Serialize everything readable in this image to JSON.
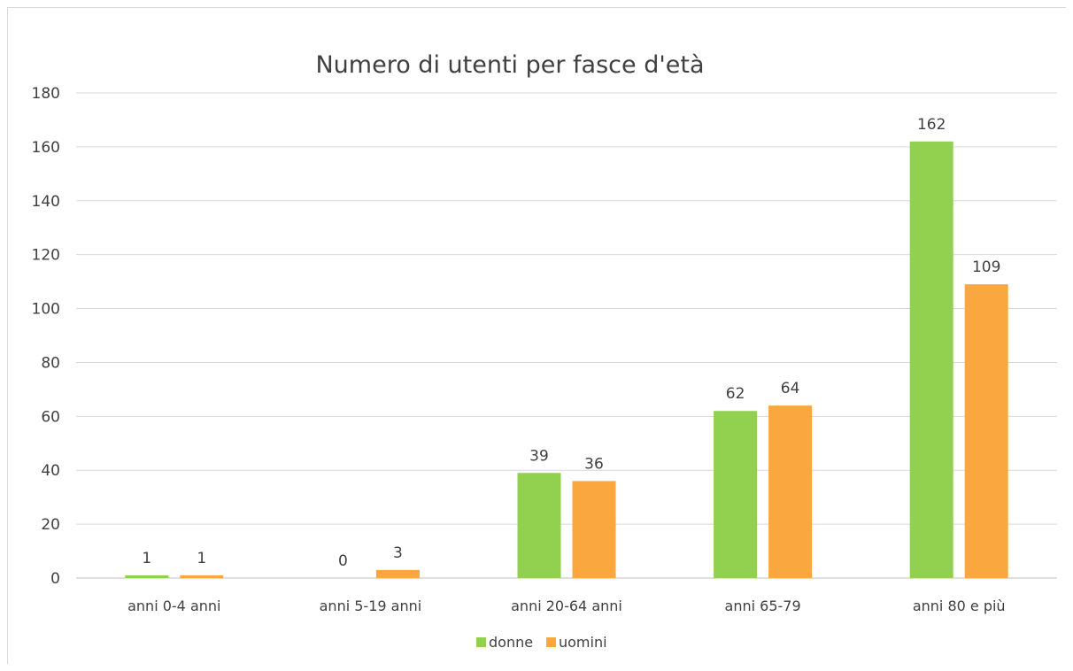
{
  "chart_data": {
    "type": "bar",
    "title": "Numero di utenti per fasce d'età",
    "categories": [
      "anni 0-4 anni",
      "anni 5-19 anni",
      "anni 20-64 anni",
      "anni 65-79",
      "anni 80 e più"
    ],
    "series": [
      {
        "name": "donne",
        "values": [
          1,
          0,
          39,
          62,
          162
        ],
        "color": "#92D050"
      },
      {
        "name": "uomini",
        "values": [
          1,
          3,
          36,
          64,
          109
        ],
        "color": "#F9A73E"
      }
    ],
    "ylim": [
      0,
      180
    ],
    "yticks": [
      0,
      20,
      40,
      60,
      80,
      100,
      120,
      140,
      160,
      180
    ],
    "grid": true,
    "legend_position": "bottom"
  }
}
